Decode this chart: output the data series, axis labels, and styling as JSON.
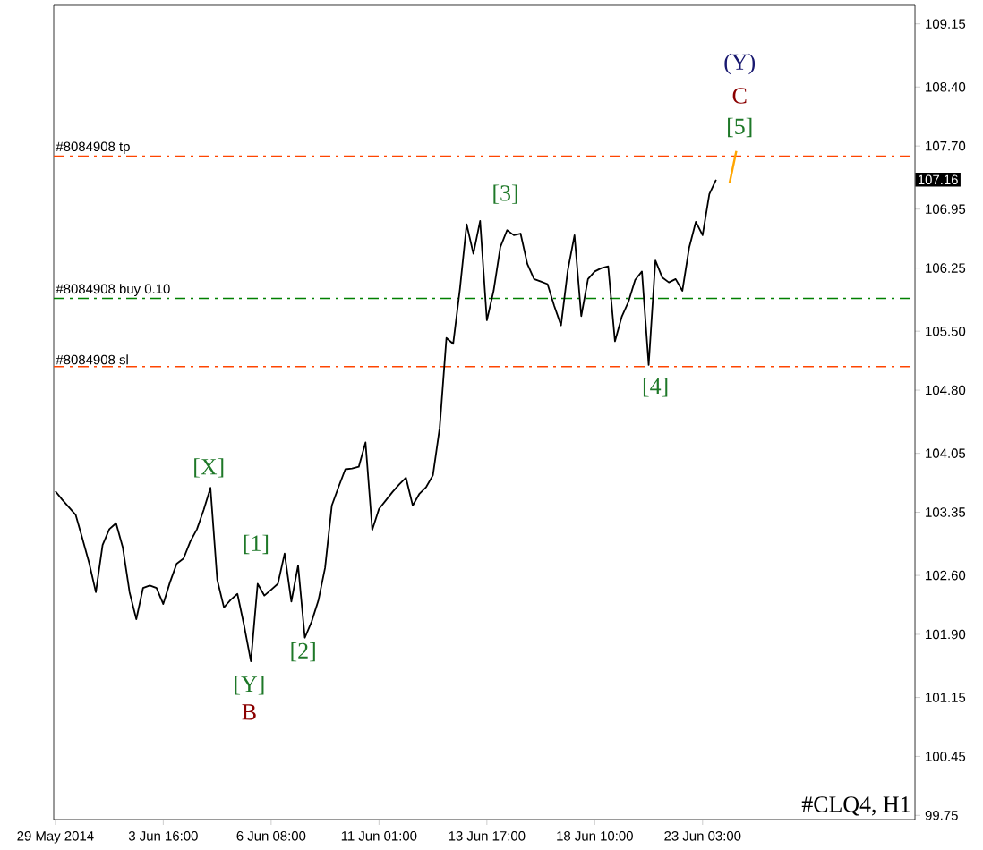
{
  "chart_data": {
    "type": "line",
    "categories": [
      "29 May 2014",
      null,
      null,
      null,
      null,
      null,
      null,
      null,
      null,
      null,
      null,
      null,
      null,
      null,
      null,
      null,
      "3 Jun 16:00",
      null,
      null,
      null,
      null,
      null,
      null,
      null,
      null,
      null,
      null,
      null,
      null,
      null,
      null,
      null,
      "6 Jun 08:00",
      null,
      null,
      null,
      null,
      null,
      null,
      null,
      null,
      null,
      null,
      null,
      null,
      null,
      null,
      null,
      "11 Jun 01:00",
      null,
      null,
      null,
      null,
      null,
      null,
      null,
      null,
      null,
      null,
      null,
      null,
      null,
      null,
      null,
      "13 Jun 17:00",
      null,
      null,
      null,
      null,
      null,
      null,
      null,
      null,
      null,
      null,
      null,
      null,
      null,
      null,
      null,
      "18 Jun 10:00",
      null,
      null,
      null,
      null,
      null,
      null,
      null,
      null,
      null,
      null,
      null,
      null,
      null,
      null,
      null,
      "23 Jun 03:00",
      null,
      null,
      null,
      null,
      null
    ],
    "series": [
      {
        "color": "#000000",
        "values": [
          103.6,
          103.5,
          103.41,
          103.32,
          103.04,
          102.75,
          102.4,
          102.96,
          103.15,
          103.22,
          102.93,
          102.4,
          102.08,
          102.45,
          102.48,
          102.45,
          102.26,
          102.52,
          102.74,
          102.8,
          103.0,
          103.15,
          103.38,
          103.64,
          102.55,
          102.22,
          102.31,
          102.38,
          102.0,
          101.58,
          102.5,
          102.36,
          102.43,
          102.5,
          102.86,
          102.29,
          102.72,
          101.86,
          102.05,
          102.3,
          102.69,
          103.43,
          103.65,
          103.86,
          103.87,
          103.89,
          104.18,
          103.14,
          103.39,
          103.49,
          103.59,
          103.68,
          103.76,
          103.43,
          103.57,
          103.65,
          103.79,
          104.35,
          105.42,
          105.35,
          106.0,
          106.77,
          106.42,
          106.81,
          105.63,
          105.98,
          106.5,
          106.7,
          106.64,
          106.66,
          106.3,
          106.12,
          106.09,
          106.06,
          105.8,
          105.57,
          106.22,
          106.64,
          105.68,
          106.12,
          106.21,
          106.25,
          106.27,
          105.38,
          105.67,
          105.85,
          106.11,
          106.21,
          105.1,
          106.34,
          106.14,
          106.08,
          106.12,
          105.98,
          106.49,
          106.8,
          106.64,
          107.13,
          107.3,
          null,
          null,
          null
        ]
      },
      {
        "color": "#ffa500",
        "values": [
          null,
          null,
          null,
          null,
          null,
          null,
          null,
          null,
          null,
          null,
          null,
          null,
          null,
          null,
          null,
          null,
          null,
          null,
          null,
          null,
          null,
          null,
          null,
          null,
          null,
          null,
          null,
          null,
          null,
          null,
          null,
          null,
          null,
          null,
          null,
          null,
          null,
          null,
          null,
          null,
          null,
          null,
          null,
          null,
          null,
          null,
          null,
          null,
          null,
          null,
          null,
          null,
          null,
          null,
          null,
          null,
          null,
          null,
          null,
          null,
          null,
          null,
          null,
          null,
          null,
          null,
          null,
          null,
          null,
          null,
          null,
          null,
          null,
          null,
          null,
          null,
          null,
          null,
          null,
          null,
          null,
          null,
          null,
          null,
          null,
          null,
          null,
          null,
          null,
          null,
          null,
          null,
          null,
          null,
          null,
          null,
          null,
          null,
          null,
          null,
          107.26,
          107.64
        ]
      }
    ],
    "ylim": [
      99.7,
      109.37
    ],
    "yticks": [
      99.75,
      100.45,
      101.15,
      {
        "value": 101.9,
        "label": "101.90"
      },
      {
        "value": 102.6,
        "label": "102.60"
      },
      103.35,
      104.05,
      {
        "value": 104.8,
        "label": "104.80"
      },
      {
        "value": 105.5,
        "label": "105.50"
      },
      106.25,
      106.95,
      {
        "value": 107.7,
        "label": "107.70"
      },
      {
        "value": 108.4,
        "label": "108.40"
      },
      109.15
    ],
    "ref_lines": [
      {
        "axis": "y",
        "value": 107.58,
        "label": "#8084908 tp",
        "color": "#ff4500",
        "line_style": "dashdot"
      },
      {
        "axis": "y",
        "value": 105.89,
        "label": "#8084908 buy 0.10",
        "color": "#008000",
        "line_style": "dashdot"
      },
      {
        "axis": "y",
        "value": 105.08,
        "label": "#8084908 sl",
        "color": "#ff4500",
        "line_style": "dashdot"
      }
    ],
    "annotations": [
      "[X]",
      "[1]",
      "[Y]",
      "B",
      "[2]",
      "[3]",
      "[4]",
      "[5]",
      "C",
      "(Y)",
      "107.16",
      "#CLQ4, H1"
    ]
  }
}
